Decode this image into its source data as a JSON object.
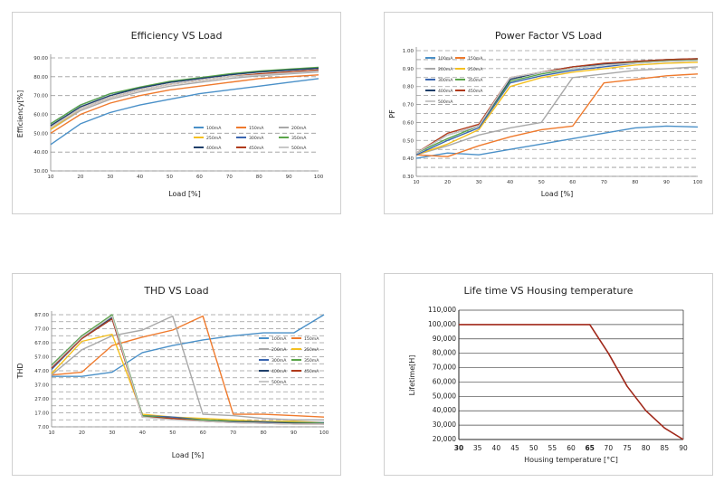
{
  "chart_data": [
    {
      "type": "line",
      "title": "Efficiency VS Load",
      "xlabel": "Load [%]",
      "ylabel": "Efficiency[%]",
      "x": [
        10,
        20,
        30,
        40,
        50,
        60,
        70,
        80,
        90,
        100
      ],
      "xlim": [
        10,
        100
      ],
      "ylim": [
        30,
        90
      ],
      "yticks": [
        30,
        40,
        50,
        60,
        70,
        80,
        90
      ],
      "ytick_labels": [
        "30.00",
        "40.00",
        "50.00",
        "60.00",
        "70.00",
        "80.00",
        "90.00"
      ],
      "grid": "horizontal dashed",
      "legend_position": "bottom-right inside",
      "series": [
        {
          "name": "100mA",
          "color": "#4a90c8",
          "values": [
            44,
            55,
            61,
            65,
            68,
            71,
            73,
            75,
            77,
            79
          ]
        },
        {
          "name": "150mA",
          "color": "#ef7a2d",
          "values": [
            50,
            60,
            66,
            70,
            73,
            75,
            77,
            79,
            80,
            81
          ]
        },
        {
          "name": "200mA",
          "color": "#a8a8a8",
          "values": [
            52,
            62,
            68,
            72,
            75,
            77,
            79,
            80.5,
            81.5,
            82.5
          ]
        },
        {
          "name": "250mA",
          "color": "#f4c020",
          "values": [
            52,
            63,
            69,
            73,
            76,
            78,
            80,
            81.5,
            82.5,
            83.5
          ]
        },
        {
          "name": "300mA",
          "color": "#3a66b0",
          "values": [
            55,
            65,
            71,
            74,
            77,
            79,
            81,
            82.5,
            83.5,
            84.5
          ]
        },
        {
          "name": "350mA",
          "color": "#5aa54a",
          "values": [
            55,
            65,
            71,
            74.5,
            77.5,
            79.5,
            81.5,
            83,
            84,
            85
          ]
        },
        {
          "name": "400mA",
          "color": "#1f3f6a",
          "values": [
            54,
            64,
            70,
            74,
            77,
            79,
            81,
            82.5,
            83.5,
            84.5
          ]
        },
        {
          "name": "450mA",
          "color": "#b03a1a",
          "values": [
            53,
            63,
            69,
            73,
            76,
            78,
            80,
            81.5,
            82.5,
            83.5
          ]
        },
        {
          "name": "500mA",
          "color": "#c8c8c8",
          "values": [
            53,
            63,
            69,
            73,
            76,
            78,
            80,
            81,
            82,
            83
          ]
        }
      ]
    },
    {
      "type": "line",
      "title": "Power Factor VS Load",
      "xlabel": "Load [%]",
      "ylabel": "PF",
      "x": [
        10,
        20,
        30,
        40,
        50,
        60,
        70,
        80,
        90,
        100
      ],
      "xlim": [
        10,
        100
      ],
      "ylim": [
        0.3,
        1.0
      ],
      "yticks": [
        0.3,
        0.4,
        0.5,
        0.6,
        0.7,
        0.8,
        0.9,
        1.0
      ],
      "ytick_labels": [
        "0.30",
        "0.40",
        "0.50",
        "0.60",
        "0.70",
        "0.80",
        "0.90",
        "1.00"
      ],
      "extra_gridlines": [
        0.35,
        0.45,
        0.55,
        0.65,
        0.75,
        0.85,
        0.95
      ],
      "grid": "horizontal dashed",
      "legend_position": "top-left inside",
      "series": [
        {
          "name": "100mA",
          "color": "#4a90c8",
          "values": [
            0.4,
            0.43,
            0.42,
            0.45,
            0.48,
            0.51,
            0.54,
            0.57,
            0.58,
            0.575
          ]
        },
        {
          "name": "150mA",
          "color": "#ef7a2d",
          "values": [
            0.42,
            0.41,
            0.47,
            0.52,
            0.56,
            0.58,
            0.82,
            0.84,
            0.86,
            0.87
          ]
        },
        {
          "name": "200mA",
          "color": "#a8a8a8",
          "values": [
            0.42,
            0.47,
            0.53,
            0.57,
            0.6,
            0.85,
            0.87,
            0.89,
            0.9,
            0.91
          ]
        },
        {
          "name": "250mA",
          "color": "#f4c020",
          "values": [
            0.42,
            0.48,
            0.56,
            0.8,
            0.85,
            0.88,
            0.9,
            0.92,
            0.93,
            0.935
          ]
        },
        {
          "name": "300mA",
          "color": "#3a66b0",
          "values": [
            0.42,
            0.5,
            0.57,
            0.82,
            0.86,
            0.89,
            0.91,
            0.93,
            0.94,
            0.945
          ]
        },
        {
          "name": "350mA",
          "color": "#5aa54a",
          "values": [
            0.43,
            0.51,
            0.58,
            0.83,
            0.87,
            0.9,
            0.92,
            0.935,
            0.945,
            0.95
          ]
        },
        {
          "name": "400mA",
          "color": "#1f3f6a",
          "values": [
            0.43,
            0.53,
            0.58,
            0.84,
            0.88,
            0.91,
            0.925,
            0.94,
            0.95,
            0.955
          ]
        },
        {
          "name": "450mA",
          "color": "#b03a1a",
          "values": [
            0.43,
            0.54,
            0.59,
            0.85,
            0.88,
            0.91,
            0.93,
            0.94,
            0.95,
            0.955
          ]
        },
        {
          "name": "500mA",
          "color": "#c8c8c8",
          "values": [
            0.43,
            0.53,
            0.58,
            0.85,
            0.88,
            0.9,
            0.92,
            0.93,
            0.94,
            0.945
          ]
        }
      ]
    },
    {
      "type": "line",
      "title": "THD VS Load",
      "xlabel": "Load [%]",
      "ylabel": "THD",
      "x": [
        10,
        20,
        30,
        40,
        50,
        60,
        70,
        80,
        90,
        100
      ],
      "xlim": [
        10,
        100
      ],
      "ylim": [
        7,
        87
      ],
      "yticks": [
        7,
        17,
        27,
        37,
        47,
        57,
        67,
        77,
        87
      ],
      "ytick_labels": [
        "7.00",
        "17.00",
        "27.00",
        "37.00",
        "47.00",
        "57.00",
        "67.00",
        "77.00",
        "87.00"
      ],
      "extra_gridlines": [
        12,
        22,
        32,
        42,
        52,
        62,
        72,
        82
      ],
      "grid": "horizontal dashed",
      "legend_position": "top-right inside",
      "series": [
        {
          "name": "100mA",
          "color": "#4a90c8",
          "values": [
            43,
            43,
            46,
            60,
            65,
            69,
            72,
            74,
            74,
            87
          ]
        },
        {
          "name": "150mA",
          "color": "#ef7a2d",
          "values": [
            44,
            46,
            65,
            71,
            76,
            86,
            16,
            16,
            15,
            14
          ]
        },
        {
          "name": "200mA",
          "color": "#a8a8a8",
          "values": [
            44,
            62,
            72,
            76,
            86,
            16,
            15,
            13,
            12,
            12
          ]
        },
        {
          "name": "250mA",
          "color": "#f4c020",
          "values": [
            45,
            68,
            73,
            16,
            14,
            13,
            12,
            11,
            11,
            10
          ]
        },
        {
          "name": "300mA",
          "color": "#3a66b0",
          "values": [
            48,
            70,
            84,
            15,
            14,
            12,
            11,
            10.5,
            10,
            10
          ]
        },
        {
          "name": "350mA",
          "color": "#5aa54a",
          "values": [
            51,
            72,
            87,
            15,
            13,
            12,
            11,
            10,
            10,
            9.5
          ]
        },
        {
          "name": "400mA",
          "color": "#1f3f6a",
          "values": [
            50,
            71,
            85,
            14,
            13,
            11,
            10.5,
            10,
            9.5,
            9
          ]
        },
        {
          "name": "450mA",
          "color": "#b03a1a",
          "values": [
            49,
            70,
            84,
            14,
            13,
            11,
            10,
            9.5,
            9,
            9
          ]
        },
        {
          "name": "500mA",
          "color": "#c8c8c8",
          "values": [
            50,
            71,
            86,
            14,
            12,
            11,
            10,
            9.5,
            9,
            9
          ]
        }
      ]
    },
    {
      "type": "line",
      "title": "Life time VS Housing temperature",
      "xlabel": "Housing temperature [°C]",
      "ylabel": "Lifetime[H]",
      "x": [
        30,
        35,
        40,
        45,
        50,
        55,
        60,
        65,
        70,
        75,
        80,
        85,
        90
      ],
      "xtick_labels": [
        "30",
        "35",
        "40",
        "45",
        "50",
        "55",
        "60",
        "65",
        "70",
        "75",
        "80",
        "85",
        "90"
      ],
      "bold_xticks": [
        "30",
        "65"
      ],
      "xlim": [
        30,
        90
      ],
      "ylim": [
        20000,
        110000
      ],
      "yticks": [
        20000,
        30000,
        40000,
        50000,
        60000,
        70000,
        80000,
        90000,
        100000,
        110000
      ],
      "ytick_labels": [
        "20,000",
        "30,000",
        "40,000",
        "50,000",
        "60,000",
        "70,000",
        "80,000",
        "90,000",
        "100,000",
        "110,000"
      ],
      "grid": "horizontal solid",
      "series": [
        {
          "name": "",
          "color": "#a0281a",
          "points": [
            [
              30,
              100000
            ],
            [
              60,
              100000
            ],
            [
              65,
              100000
            ],
            [
              70,
              80000
            ],
            [
              75,
              57000
            ],
            [
              80,
              40000
            ],
            [
              85,
              28000
            ],
            [
              90,
              20000
            ]
          ]
        }
      ]
    }
  ]
}
